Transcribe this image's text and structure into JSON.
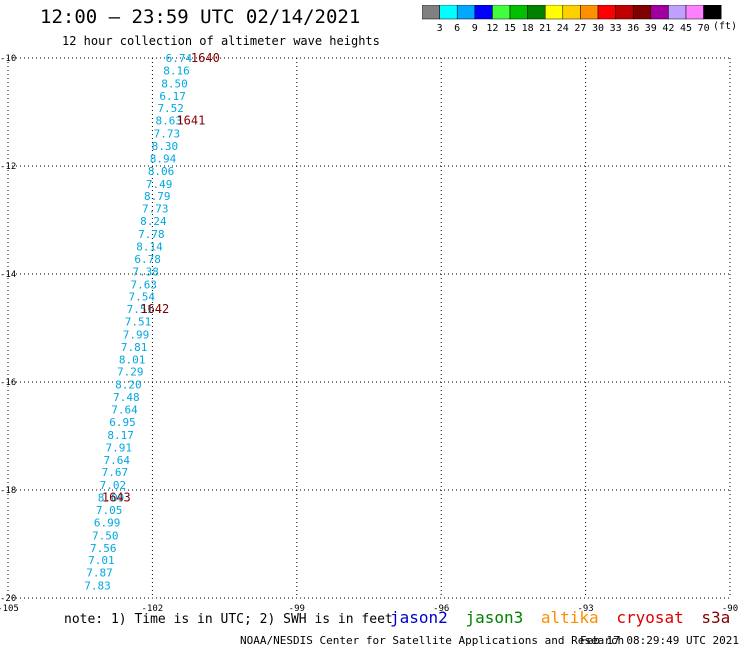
{
  "header": {
    "title": "12:00 – 23:59 UTC 02/14/2021",
    "subtitle": "12 hour collection of altimeter wave heights"
  },
  "colorbar": {
    "colors": [
      "#808080",
      "#00ffff",
      "#00a8ff",
      "#0000ff",
      "#40ff40",
      "#00c000",
      "#008000",
      "#ffff00",
      "#ffd000",
      "#ff9000",
      "#ff0000",
      "#c00000",
      "#800000",
      "#a000a0",
      "#c0a0ff",
      "#ff80ff",
      "#000000"
    ],
    "labels": [
      "3",
      "6",
      "9",
      "12",
      "15",
      "18",
      "21",
      "24",
      "27",
      "30",
      "33",
      "36",
      "39",
      "42",
      "45",
      "70"
    ],
    "units": "(ft)"
  },
  "footer": {
    "note": "note: 1) Time is in UTC; 2) SWH is in feet",
    "legend": [
      {
        "name": "jason2",
        "color": "#0000cc"
      },
      {
        "name": "jason3",
        "color": "#008000"
      },
      {
        "name": "altika",
        "color": "#ff8c00"
      },
      {
        "name": "cryosat",
        "color": "#dd0000"
      },
      {
        "name": "s3a",
        "color": "#800000"
      }
    ],
    "credit": "NOAA/NESDIS Center for Satellite Applications and Research",
    "timestamp": "Feb 17 08:29:49 UTC 2021"
  },
  "chart_data": {
    "type": "scatter",
    "title": "12:00 – 23:59 UTC 02/14/2021",
    "xlim": [
      -105,
      -90
    ],
    "ylim": [
      -20,
      -10
    ],
    "x_ticks": [
      -105,
      -102,
      -99,
      -96,
      -93,
      -90
    ],
    "x_tick_labels": [
      "-105",
      "-102",
      "-99",
      "-96",
      "-93",
      "-90"
    ],
    "y_ticks": [
      -10,
      -12,
      -14,
      -16,
      -18,
      -20
    ],
    "y_tick_labels": [
      "-10",
      "-12",
      "-14",
      "-16",
      "-18",
      "-20"
    ],
    "grid": true,
    "series": [
      {
        "color": "#00a8e0",
        "points": [
          {
            "x": -101.45,
            "y": -10.0,
            "label": "6.74"
          },
          {
            "x": -101.5,
            "y": -10.23,
            "label": "8.16"
          },
          {
            "x": -101.54,
            "y": -10.47,
            "label": "8.50"
          },
          {
            "x": -101.58,
            "y": -10.7,
            "label": "6.17"
          },
          {
            "x": -101.62,
            "y": -10.93,
            "label": "7.52"
          },
          {
            "x": -101.66,
            "y": -11.16,
            "label": "8.63"
          },
          {
            "x": -101.7,
            "y": -11.4,
            "label": "7.73"
          },
          {
            "x": -101.74,
            "y": -11.63,
            "label": "8.30"
          },
          {
            "x": -101.78,
            "y": -11.86,
            "label": "8.94"
          },
          {
            "x": -101.82,
            "y": -12.09,
            "label": "8.06"
          },
          {
            "x": -101.86,
            "y": -12.33,
            "label": "7.49"
          },
          {
            "x": -101.9,
            "y": -12.56,
            "label": "8.79"
          },
          {
            "x": -101.94,
            "y": -12.79,
            "label": "7.73"
          },
          {
            "x": -101.98,
            "y": -13.02,
            "label": "8.24"
          },
          {
            "x": -102.02,
            "y": -13.26,
            "label": "7.78"
          },
          {
            "x": -102.06,
            "y": -13.49,
            "label": "8.14"
          },
          {
            "x": -102.1,
            "y": -13.72,
            "label": "6.78"
          },
          {
            "x": -102.14,
            "y": -13.95,
            "label": "7.38"
          },
          {
            "x": -102.18,
            "y": -14.19,
            "label": "7.63"
          },
          {
            "x": -102.22,
            "y": -14.42,
            "label": "7.54"
          },
          {
            "x": -102.26,
            "y": -14.65,
            "label": "7.51"
          },
          {
            "x": -102.3,
            "y": -14.88,
            "label": "7.51"
          },
          {
            "x": -102.34,
            "y": -15.12,
            "label": "7.99"
          },
          {
            "x": -102.38,
            "y": -15.35,
            "label": "7.81"
          },
          {
            "x": -102.42,
            "y": -15.58,
            "label": "8.01"
          },
          {
            "x": -102.46,
            "y": -15.81,
            "label": "7.29"
          },
          {
            "x": -102.5,
            "y": -16.05,
            "label": "8.20"
          },
          {
            "x": -102.54,
            "y": -16.28,
            "label": "7.48"
          },
          {
            "x": -102.58,
            "y": -16.51,
            "label": "7.64"
          },
          {
            "x": -102.62,
            "y": -16.74,
            "label": "6.95"
          },
          {
            "x": -102.66,
            "y": -16.98,
            "label": "8.17"
          },
          {
            "x": -102.7,
            "y": -17.21,
            "label": "7.91"
          },
          {
            "x": -102.74,
            "y": -17.44,
            "label": "7.64"
          },
          {
            "x": -102.78,
            "y": -17.67,
            "label": "7.67"
          },
          {
            "x": -102.82,
            "y": -17.91,
            "label": "7.02"
          },
          {
            "x": -102.86,
            "y": -18.14,
            "label": "8.09"
          },
          {
            "x": -102.9,
            "y": -18.37,
            "label": "7.05"
          },
          {
            "x": -102.94,
            "y": -18.6,
            "label": "6.99"
          },
          {
            "x": -102.98,
            "y": -18.84,
            "label": "7.50"
          },
          {
            "x": -103.02,
            "y": -19.07,
            "label": "7.56"
          },
          {
            "x": -103.06,
            "y": -19.3,
            "label": "7.01"
          },
          {
            "x": -103.1,
            "y": -19.53,
            "label": "7.87"
          },
          {
            "x": -103.14,
            "y": -19.77,
            "label": "7.83"
          }
        ]
      }
    ],
    "annotations": [
      {
        "x": -100.9,
        "y": -10.0,
        "text": "1640",
        "color": "#800000"
      },
      {
        "x": -101.2,
        "y": -11.16,
        "text": "1641",
        "color": "#800000"
      },
      {
        "x": -101.95,
        "y": -14.65,
        "text": "1642",
        "color": "#800000"
      },
      {
        "x": -102.75,
        "y": -18.14,
        "text": "1643",
        "color": "#800000"
      }
    ]
  }
}
